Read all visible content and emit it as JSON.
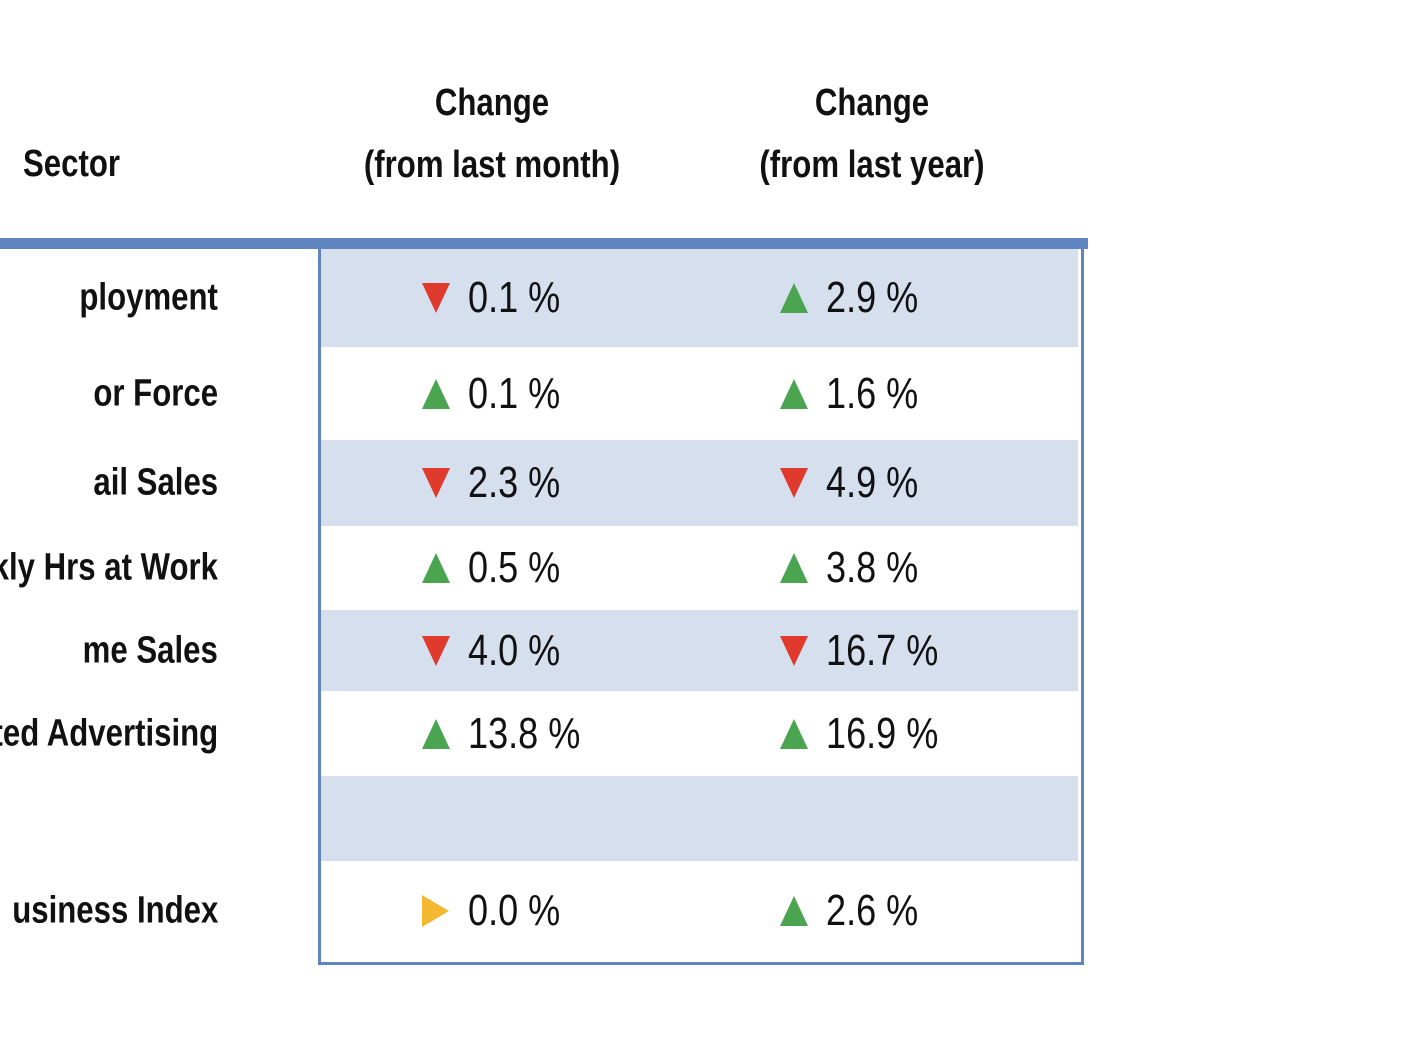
{
  "header": {
    "sector": "Sector",
    "month_line1": "Change",
    "month_line2": "(from last month)",
    "year_line1": "Change",
    "year_line2": "(from last year)"
  },
  "colors": {
    "up": "#4aa450",
    "down": "#e03a2d",
    "flat": "#f2b830",
    "rule": "#5f84c0",
    "band": "#d6dfee"
  },
  "rows": [
    {
      "sector": "ployment",
      "month": {
        "direction": "down",
        "icon": "down-triangle-icon",
        "value": "0.1 %"
      },
      "year": {
        "direction": "up",
        "icon": "up-triangle-icon",
        "value": "2.9 %"
      }
    },
    {
      "sector": "or Force",
      "month": {
        "direction": "up",
        "icon": "up-triangle-icon",
        "value": "0.1 %"
      },
      "year": {
        "direction": "up",
        "icon": "up-triangle-icon",
        "value": "1.6 %"
      }
    },
    {
      "sector": "ail  Sales",
      "month": {
        "direction": "down",
        "icon": "down-triangle-icon",
        "value": "2.3 %"
      },
      "year": {
        "direction": "down",
        "icon": "down-triangle-icon",
        "value": "4.9 %"
      }
    },
    {
      "sector": "kly Hrs at Work",
      "month": {
        "direction": "up",
        "icon": "up-triangle-icon",
        "value": "0.5 %"
      },
      "year": {
        "direction": "up",
        "icon": "up-triangle-icon",
        "value": "3.8 %"
      }
    },
    {
      "sector": "me Sales",
      "month": {
        "direction": "down",
        "icon": "down-triangle-icon",
        "value": "4.0 %"
      },
      "year": {
        "direction": "down",
        "icon": "down-triangle-icon",
        "value": "16.7 %"
      }
    },
    {
      "sector": "ted Advertising",
      "month": {
        "direction": "up",
        "icon": "up-triangle-icon",
        "value": "13.8 %"
      },
      "year": {
        "direction": "up",
        "icon": "up-triangle-icon",
        "value": "16.9 %"
      }
    },
    {
      "sector": "",
      "month": {
        "direction": "",
        "icon": "",
        "value": ""
      },
      "year": {
        "direction": "",
        "icon": "",
        "value": ""
      }
    },
    {
      "sector": "usiness Index",
      "month": {
        "direction": "flat",
        "icon": "right-triangle-icon",
        "value": "0.0 %"
      },
      "year": {
        "direction": "up",
        "icon": "up-triangle-icon",
        "value": "2.6 %"
      }
    }
  ]
}
